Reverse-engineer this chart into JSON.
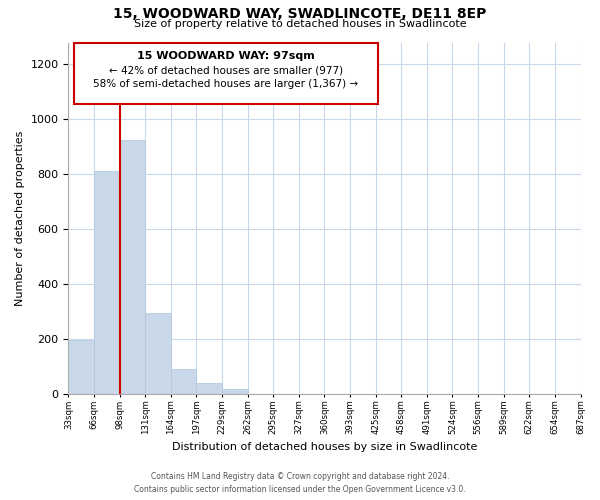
{
  "title": "15, WOODWARD WAY, SWADLINCOTE, DE11 8EP",
  "subtitle": "Size of property relative to detached houses in Swadlincote",
  "xlabel": "Distribution of detached houses by size in Swadlincote",
  "ylabel": "Number of detached properties",
  "footer_line1": "Contains HM Land Registry data © Crown copyright and database right 2024.",
  "footer_line2": "Contains public sector information licensed under the Open Government Licence v3.0.",
  "bin_labels": [
    "33sqm",
    "66sqm",
    "98sqm",
    "131sqm",
    "164sqm",
    "197sqm",
    "229sqm",
    "262sqm",
    "295sqm",
    "327sqm",
    "360sqm",
    "393sqm",
    "425sqm",
    "458sqm",
    "491sqm",
    "524sqm",
    "556sqm",
    "589sqm",
    "622sqm",
    "654sqm",
    "687sqm"
  ],
  "bar_heights": [
    197,
    810,
    925,
    295,
    90,
    40,
    18,
    0,
    0,
    0,
    0,
    0,
    0,
    0,
    0,
    0,
    0,
    0,
    0,
    0
  ],
  "bar_color": "#c8d8e8",
  "bar_edge_color": "#b0c8e0",
  "property_line_x": 2,
  "annotation_title": "15 WOODWARD WAY: 97sqm",
  "annotation_line1": "← 42% of detached houses are smaller (977)",
  "annotation_line2": "58% of semi-detached houses are larger (1,367) →",
  "red_line_color": "#cc0000",
  "ylim": [
    0,
    1280
  ],
  "yticks": [
    0,
    200,
    400,
    600,
    800,
    1000,
    1200
  ],
  "background_color": "#ffffff",
  "grid_color": "#c8d8e8"
}
